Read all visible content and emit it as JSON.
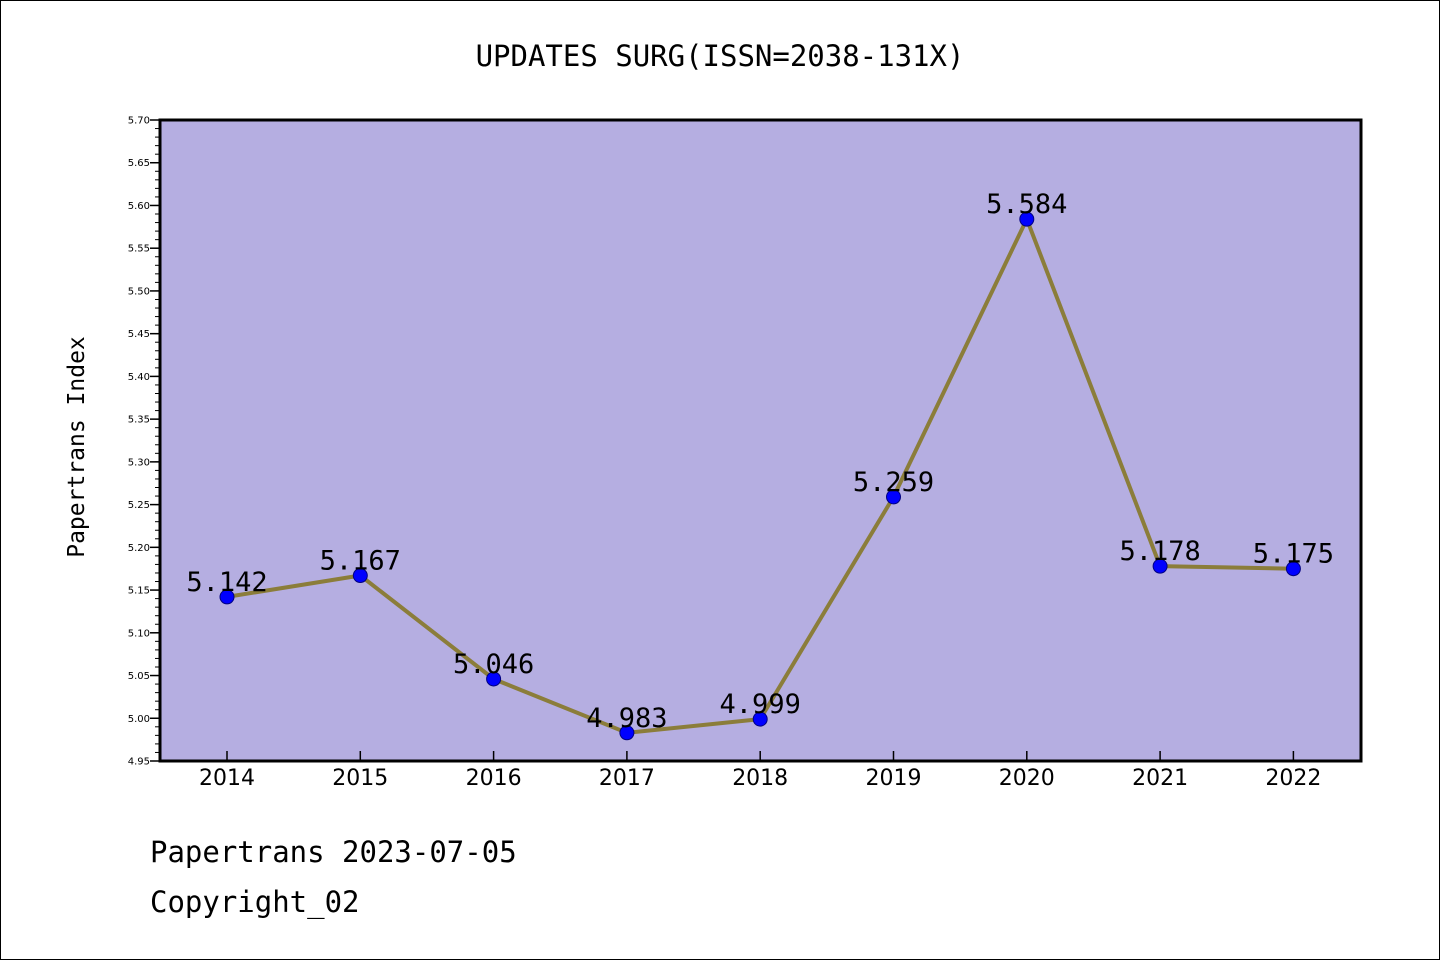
{
  "chart_data": {
    "type": "line",
    "title": "UPDATES SURG(ISSN=2038-131X)",
    "ylabel": "Papertrans Index",
    "xlabel": "",
    "categories": [
      "2014",
      "2015",
      "2016",
      "2017",
      "2018",
      "2019",
      "2020",
      "2021",
      "2022"
    ],
    "values": [
      5.142,
      5.167,
      5.046,
      4.983,
      4.999,
      5.259,
      5.584,
      5.178,
      5.175
    ],
    "data_labels": [
      "5.142",
      "5.167",
      "5.046",
      "4.983",
      "4.999",
      "5.259",
      "5.584",
      "5.178",
      "5.175"
    ],
    "ylim": [
      4.95,
      5.7
    ],
    "yticks": [
      "4.95",
      "5.00",
      "5.05",
      "5.10",
      "5.15",
      "5.20",
      "5.25",
      "5.30",
      "5.35",
      "5.40",
      "5.45",
      "5.50",
      "5.55",
      "5.60",
      "5.65",
      "5.70"
    ],
    "grid": false,
    "legend": "none",
    "colors": {
      "plot_background": "#b5aee1",
      "line": "#8b7d3a",
      "marker": "#0000ff",
      "axes": "#000000"
    }
  },
  "footer": {
    "date_text": "Papertrans 2023-07-05",
    "copyright_text": "Copyright_02"
  }
}
